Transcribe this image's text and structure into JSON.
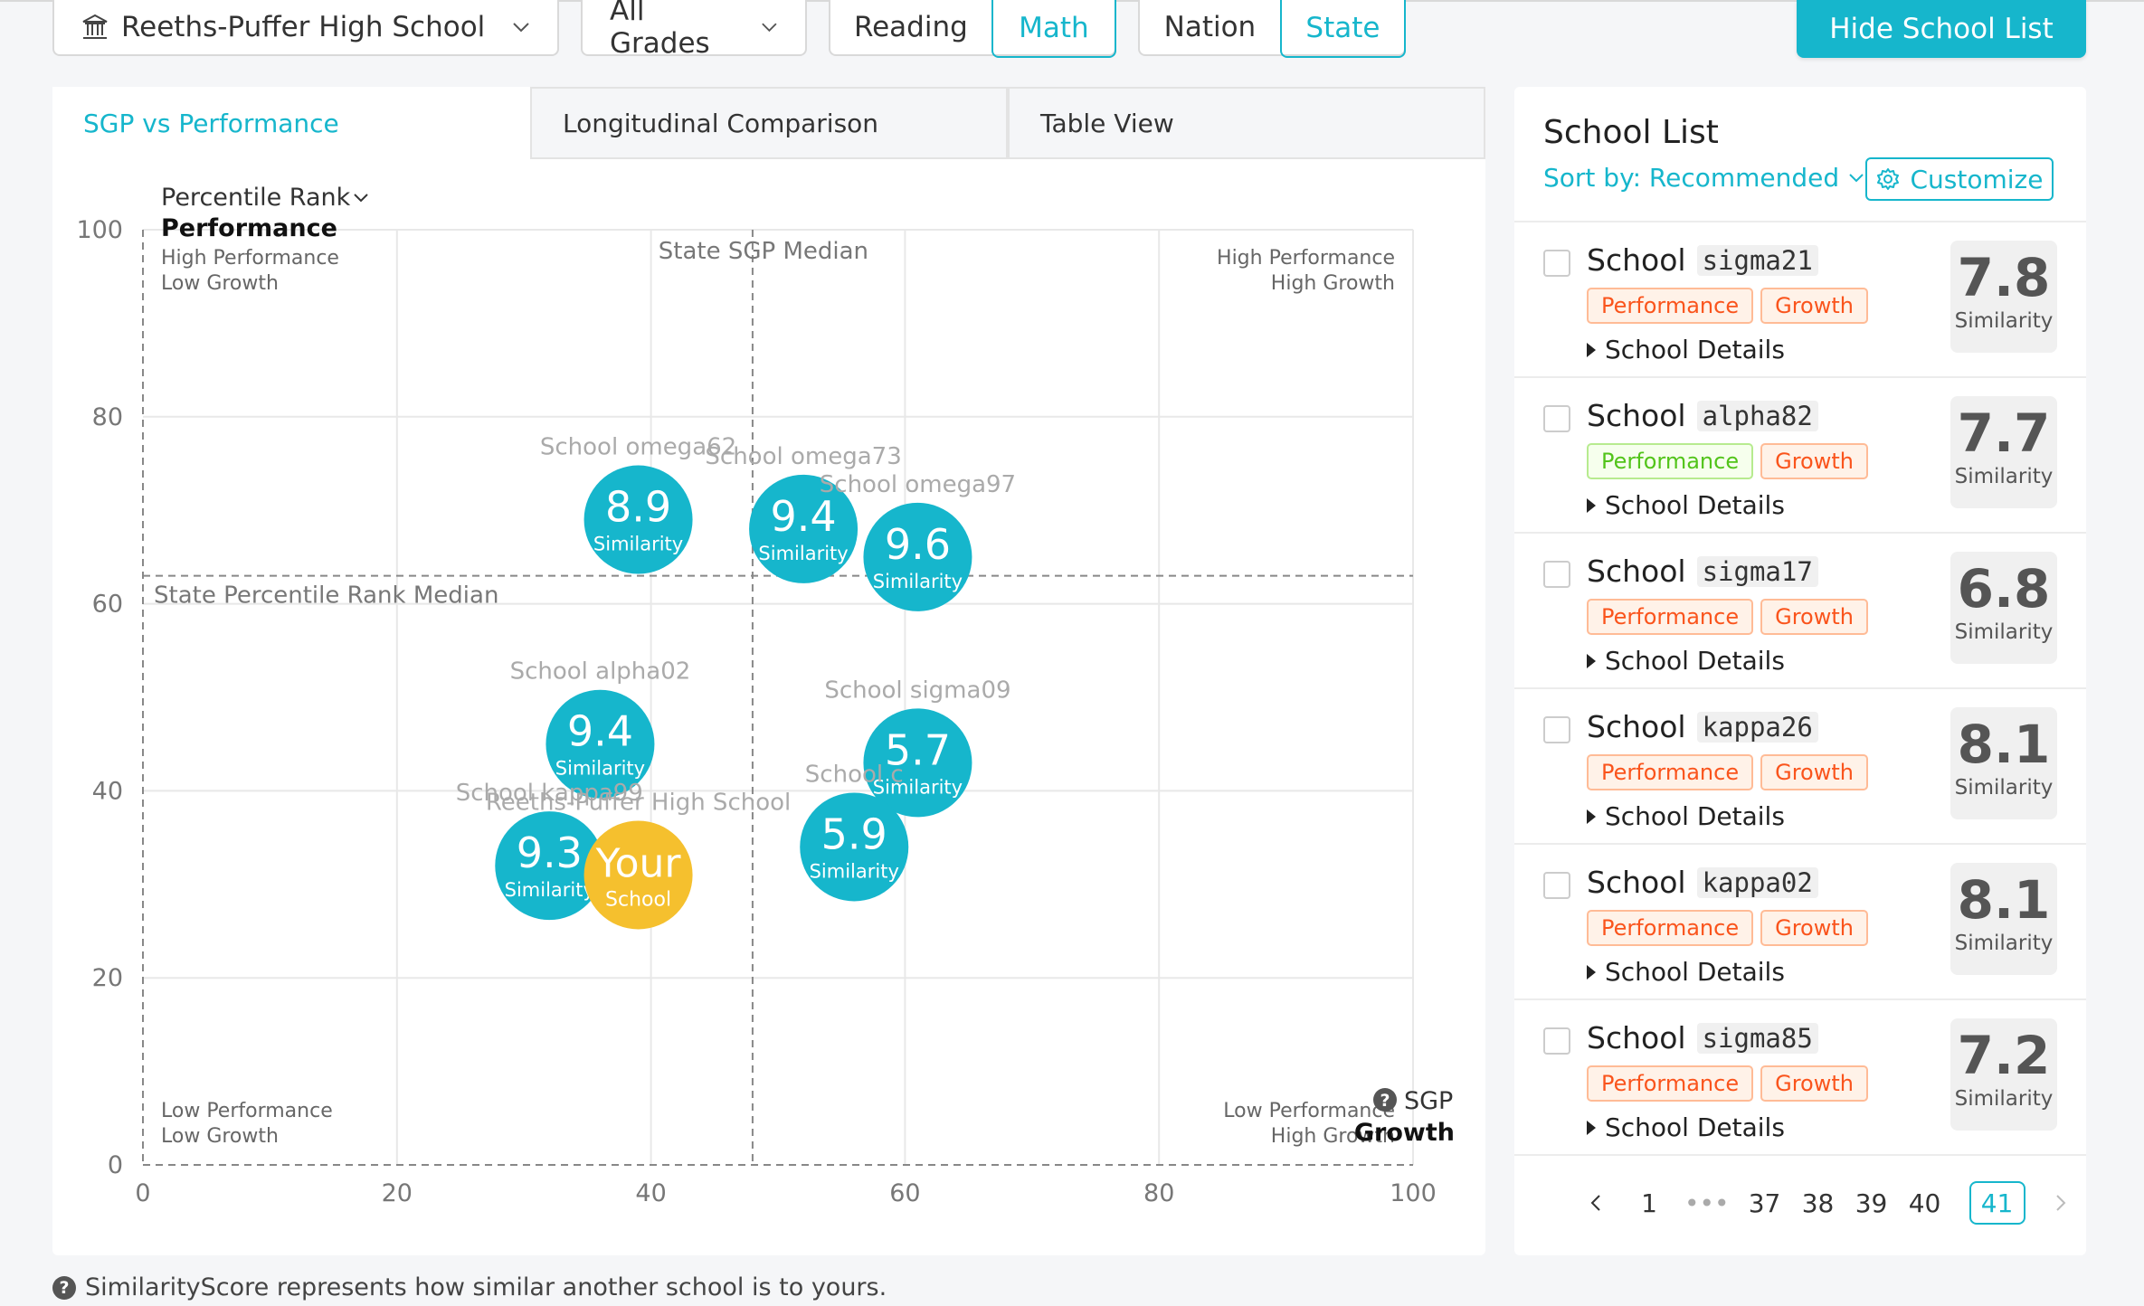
{
  "toolbar": {
    "school": "Reeths-Puffer High School",
    "grades": "All Grades",
    "subject_options": [
      "Reading",
      "Math"
    ],
    "subject_active": "Math",
    "scope_options": [
      "Nation",
      "State"
    ],
    "scope_active": "State",
    "hide_button": "Hide School List"
  },
  "tabs": [
    "SGP vs Performance",
    "Longitudinal Comparison",
    "Table View"
  ],
  "chart": {
    "y_selector": "Percentile Rank",
    "y_title": "Performance",
    "x_sub": "SGP",
    "x_title": "Growth",
    "quadrants": {
      "top_left": [
        "High Performance",
        "Low Growth"
      ],
      "top_right": [
        "High Performance",
        "High Growth"
      ],
      "bottom_left": [
        "Low Performance",
        "Low Growth"
      ],
      "bottom_right": [
        "Low Performance",
        "High Growth"
      ]
    },
    "median_x_label": "State SGP Median",
    "median_y_label": "State Percentile Rank Median"
  },
  "chart_data": {
    "type": "scatter",
    "xlim": [
      0,
      100
    ],
    "ylim": [
      0,
      100
    ],
    "x_ticks": [
      0,
      20,
      40,
      60,
      80,
      100
    ],
    "y_ticks": [
      0,
      20,
      40,
      60,
      80,
      100
    ],
    "median_x": 48,
    "median_y": 63,
    "bubble_label": "Similarity",
    "points": [
      {
        "name": "School omega62",
        "x": 39,
        "y": 69,
        "score": "8.9"
      },
      {
        "name": "School omega73",
        "x": 52,
        "y": 68,
        "score": "9.4"
      },
      {
        "name": "School omega97",
        "x": 61,
        "y": 65,
        "score": "9.6"
      },
      {
        "name": "School alpha02",
        "x": 36,
        "y": 45,
        "score": "9.4"
      },
      {
        "name": "School sigma09",
        "x": 61,
        "y": 43,
        "score": "5.7"
      },
      {
        "name": "School c",
        "x": 56,
        "y": 34,
        "score": "5.9"
      },
      {
        "name": "School kappa99",
        "x": 32,
        "y": 32,
        "score": "9.3"
      }
    ],
    "your_school": {
      "name": "Reeths-Puffer High School",
      "x": 39,
      "y": 31,
      "line1": "Your",
      "line2": "School"
    }
  },
  "footnote": "SimilarityScore represents how similar another school is to yours.",
  "school_list": {
    "title": "School List",
    "sort_label": "Sort by: Recommended",
    "customize_label": "Customize",
    "details_label": "School Details",
    "score_label": "Similarity",
    "items": [
      {
        "prefix": "School",
        "code": "sigma21",
        "tags": [
          "Performance",
          "Growth"
        ],
        "score": "7.8"
      },
      {
        "prefix": "School",
        "code": "alpha82",
        "tags": [
          "Performance",
          "Growth"
        ],
        "score": "7.7"
      },
      {
        "prefix": "School",
        "code": "sigma17",
        "tags": [
          "Performance",
          "Growth"
        ],
        "score": "6.8"
      },
      {
        "prefix": "School",
        "code": "kappa26",
        "tags": [
          "Performance",
          "Growth"
        ],
        "score": "8.1"
      },
      {
        "prefix": "School",
        "code": "kappa02",
        "tags": [
          "Performance",
          "Growth"
        ],
        "score": "8.1"
      },
      {
        "prefix": "School",
        "code": "sigma85",
        "tags": [
          "Performance",
          "Growth"
        ],
        "score": "7.2"
      }
    ],
    "pagination": [
      "1",
      "•••",
      "37",
      "38",
      "39",
      "40",
      "41"
    ],
    "active_page": "41"
  },
  "colors": {
    "accent": "#16b6cc",
    "your_school": "#f5c02e"
  }
}
